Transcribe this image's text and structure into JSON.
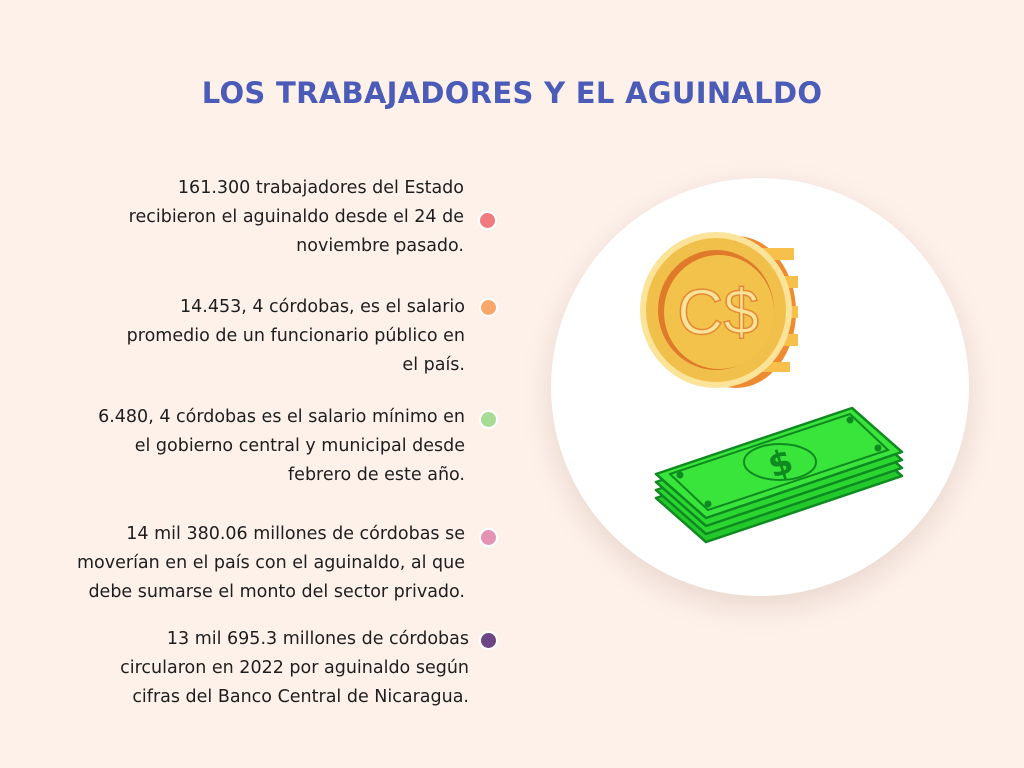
{
  "title": "LOS TRABAJADORES Y EL AGUINALDO",
  "items": [
    {
      "text": "161.300 trabajadores del Estado\nrecibieron el aguinaldo desde el 24 de\nnoviembre pasado. ",
      "dot_color": "#ef7b7f"
    },
    {
      "text": "14.453, 4 córdobas, es el salario\npromedio de un funcionario público en\nel país.",
      "dot_color": "#f7a86a"
    },
    {
      "text": "6.480, 4 córdobas es el salario mínimo en\nel gobierno central y municipal desde\nfebrero de este año. ",
      "dot_color": "#a6dc93"
    },
    {
      "text": "14 mil 380.06 millones de córdobas se\nmoverían en el país con el aguinaldo, al que\ndebe sumarse el monto del sector privado.",
      "dot_color": "#e493b5"
    },
    {
      "text": "13 mil 695.3 millones de córdobas\ncircularon en 2022 por aguinaldo según\ncifras del Banco Central de Nicaragua.",
      "dot_color": "#6f4685"
    }
  ],
  "illustration": {
    "coin_symbol": "C$",
    "bill_symbol": "$",
    "coin_icon": "cordoba-coin-icon",
    "bill_icon": "dollar-bills-icon"
  },
  "colors": {
    "background": "#fdf1ea",
    "title": "#4a5bb8",
    "bill_green": "#39e53a",
    "coin_gold": "#f2c24a"
  }
}
